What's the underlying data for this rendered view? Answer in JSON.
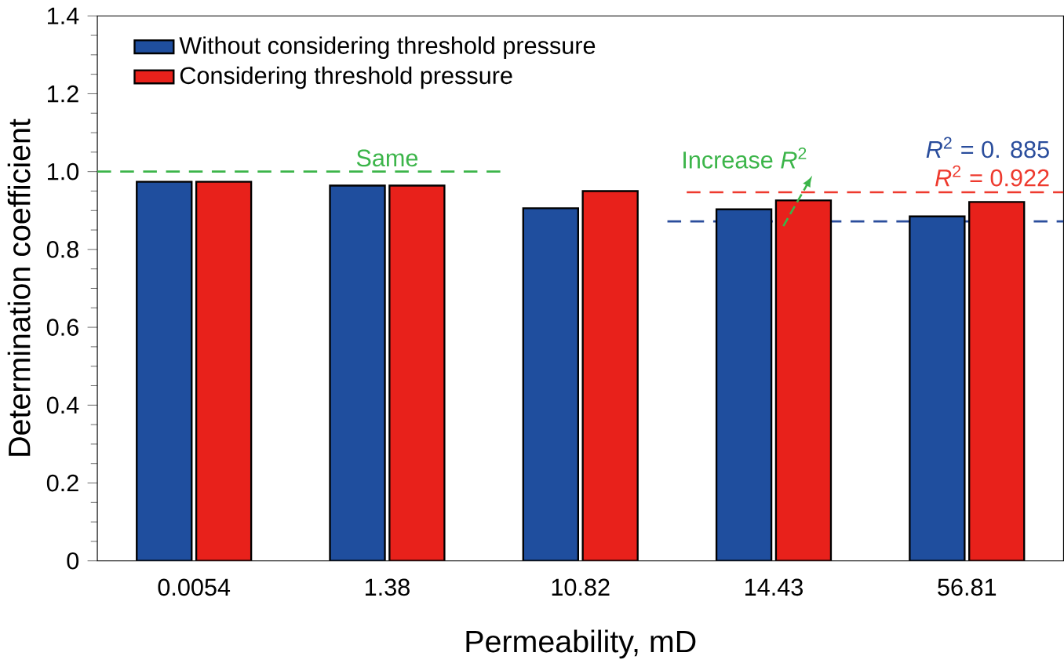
{
  "chart_data": {
    "type": "bar",
    "xlabel": "Permeability, mD",
    "ylabel": "Determination coefficient",
    "categories": [
      "0.0054",
      "1.38",
      "10.82",
      "14.43",
      "56.81"
    ],
    "series": [
      {
        "name": "Without considering threshold pressure",
        "color": "#1f4e9e",
        "values": [
          0.974,
          0.964,
          0.906,
          0.903,
          0.885
        ]
      },
      {
        "name": "Considering threshold pressure",
        "color": "#e8211b",
        "values": [
          0.974,
          0.964,
          0.95,
          0.926,
          0.922
        ]
      }
    ],
    "ylim": [
      0,
      1.4
    ],
    "yticks": [
      {
        "value": 0,
        "label": "0"
      },
      0.2,
      0.4,
      0.6,
      0.8,
      {
        "value": 1,
        "label": "1.0"
      },
      1.2,
      1.4
    ],
    "ref_lines": [
      {
        "axis": "y",
        "value": 1.0,
        "label": "Same",
        "color": "#3cb54a",
        "line_style": "dashed"
      },
      {
        "axis": "y",
        "value": 0.947,
        "color": "#ee3a2e",
        "line_style": "dashed"
      },
      {
        "axis": "y",
        "value": 0.872,
        "color": "#2a4d9c",
        "line_style": "dashed"
      }
    ],
    "annotations": [
      "Increase *R*$^{2}$",
      "*R*$^{2}$ = 0.922",
      "*R*$^{2}$ = 0. 885"
    ],
    "legend": "top left",
    "grid": false
  }
}
